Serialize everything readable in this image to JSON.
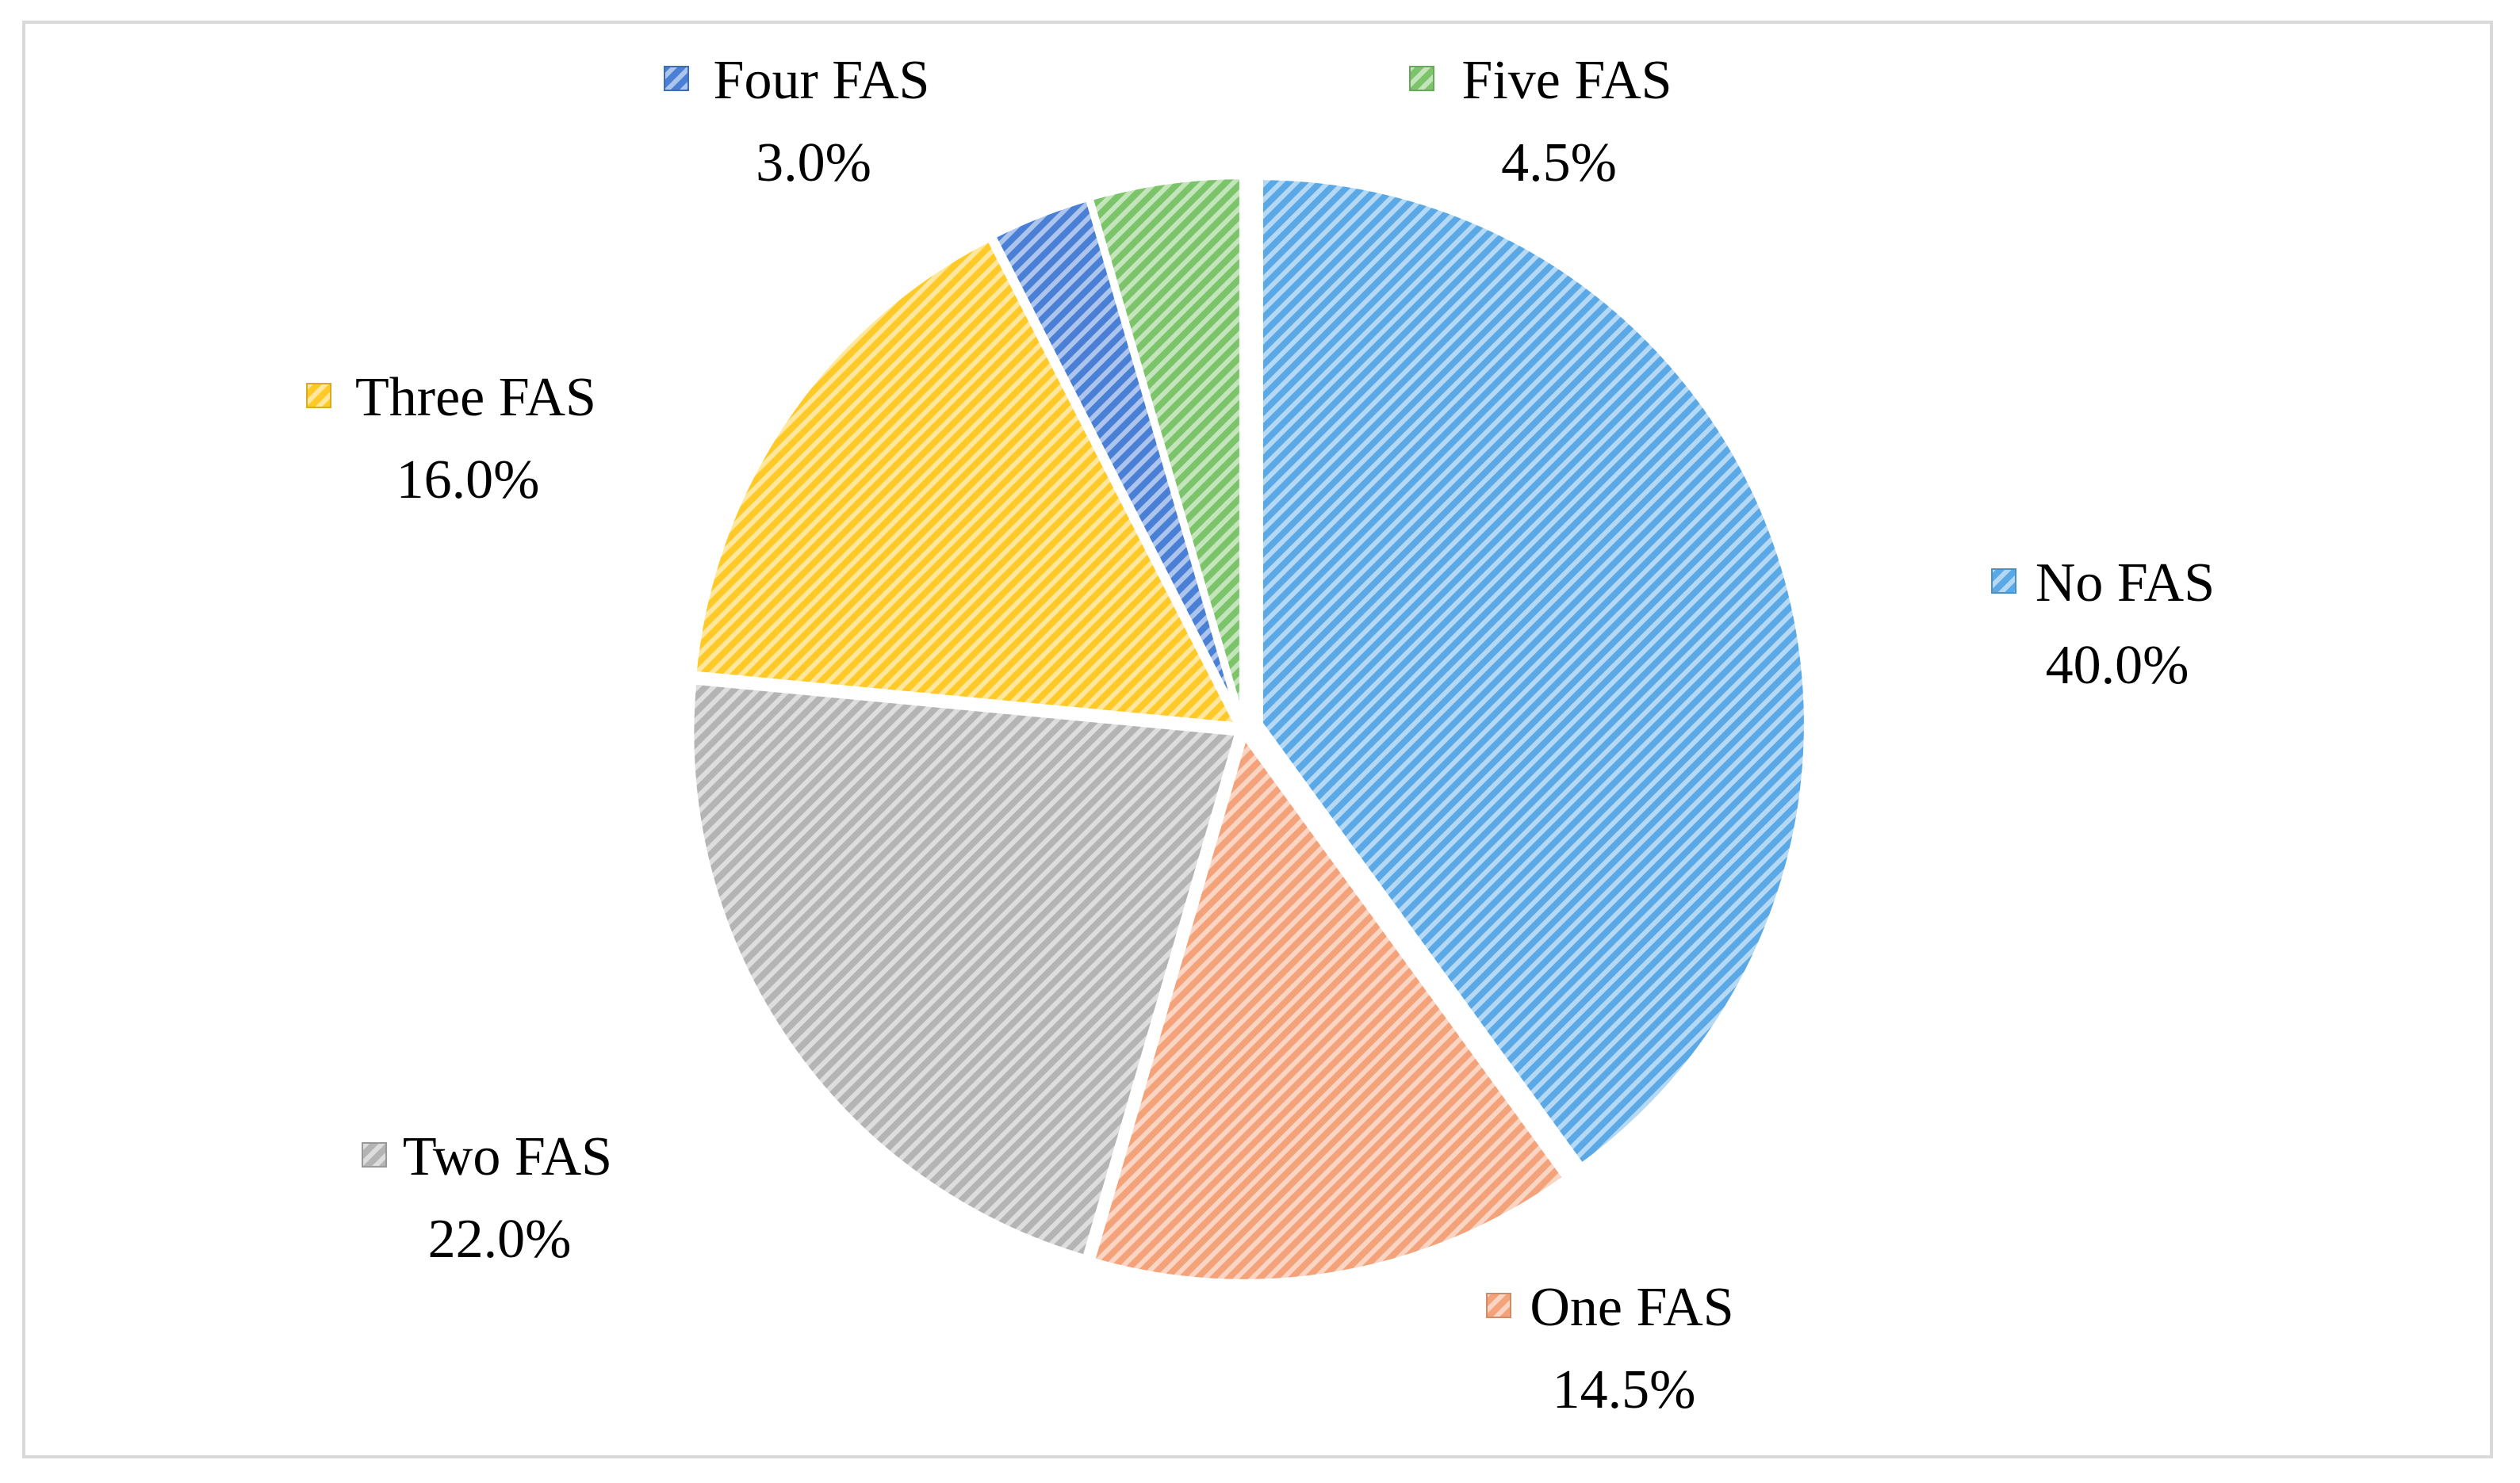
{
  "chart_data": {
    "type": "pie",
    "title": "",
    "start": "12 o'clock, clockwise",
    "slices": [
      {
        "name": "No FAS",
        "value": 40.0,
        "label": "40.0%",
        "color": "#5aa9e6"
      },
      {
        "name": "One FAS",
        "value": 14.5,
        "label": "14.5%",
        "color": "#f4a27a"
      },
      {
        "name": "Two FAS",
        "value": 22.0,
        "label": "22.0%",
        "color": "#b4b4b4"
      },
      {
        "name": "Three FAS",
        "value": 16.0,
        "label": "16.0%",
        "color": "#ffc928"
      },
      {
        "name": "Four FAS",
        "value": 3.0,
        "label": "3.0%",
        "color": "#4a7fd6"
      },
      {
        "name": "Five FAS",
        "value": 4.5,
        "label": "4.5%",
        "color": "#7cc46a"
      }
    ],
    "pattern": "diagonal-hatch",
    "legend": "none (category name and percentage printed beside each slice)"
  }
}
